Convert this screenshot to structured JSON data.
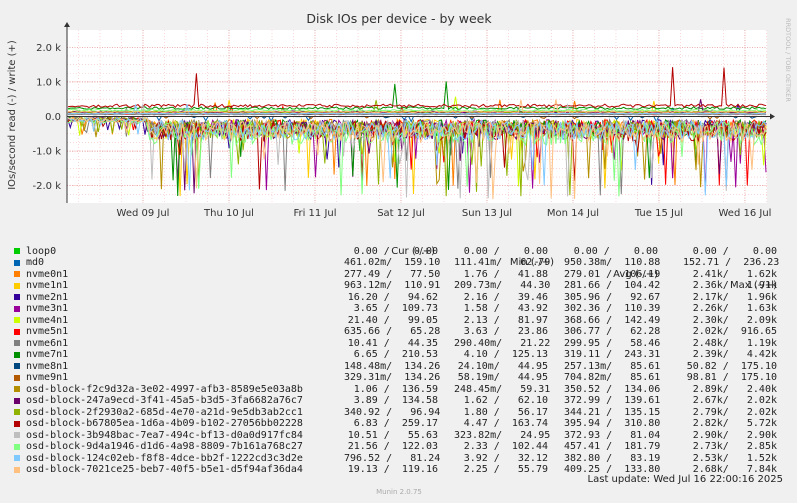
{
  "chart_data": {
    "type": "line",
    "title": "Disk IOs per device - by week",
    "ylabel": "IOs/second read (-) / write (+)",
    "ylim": [
      -2500,
      2500
    ],
    "y_ticks": [
      "2.0 k",
      "1.0 k",
      "0.0",
      "-1.0 k",
      "-2.0 k"
    ],
    "x_ticks": [
      "Wed 09 Jul",
      "Thu 10 Jul",
      "Fri 11 Jul",
      "Sat 12 Jul",
      "Sun 13 Jul",
      "Mon 14 Jul",
      "Tue 15 Jul",
      "Wed 16 Jul"
    ],
    "grid": true,
    "side_label": "RRDTOOL / TOBI OETIKER",
    "footer": "Munin 2.0.75",
    "last_update": "Last update: Wed Jul 16 22:00:16 2025",
    "legend_headers": {
      "cur": "Cur (-/+)",
      "min": "Min (-/+)",
      "avg": "Avg (-/+)",
      "max": "Max (-/+)"
    },
    "series": [
      {
        "name": "loop0",
        "color": "#00cc00",
        "cur": "0.00 /    0.00",
        "min": "0.00 /    0.00",
        "avg": "0.00 /    0.00",
        "max": "0.00 /    0.00"
      },
      {
        "name": "md0",
        "color": "#0066b3",
        "cur": "461.02m/  159.10",
        "min": "111.41m/   62.79",
        "avg": "950.38m/  110.88",
        "max": "152.71 /  236.23"
      },
      {
        "name": "nvme0n1",
        "color": "#ff8000",
        "cur": "277.49 /   77.50",
        "min": "1.76 /   41.88",
        "avg": "279.01 /  106.19",
        "max": "2.41k/   1.62k"
      },
      {
        "name": "nvme1n1",
        "color": "#ffcc00",
        "cur": "963.12m/  110.91",
        "min": "209.73m/   44.30",
        "avg": "281.66 /  104.42",
        "max": "2.36k/   1.91k"
      },
      {
        "name": "nvme2n1",
        "color": "#330099",
        "cur": "16.20 /   94.62",
        "min": "2.16 /   39.46",
        "avg": "305.96 /   92.67",
        "max": "2.17k/   1.96k"
      },
      {
        "name": "nvme3n1",
        "color": "#990099",
        "cur": "3.65 /  109.73",
        "min": "1.58 /   43.92",
        "avg": "302.36 /  110.39",
        "max": "2.26k/   1.63k"
      },
      {
        "name": "nvme4n1",
        "color": "#ccff00",
        "cur": "21.40 /   99.05",
        "min": "2.13 /   81.97",
        "avg": "368.66 /  142.49",
        "max": "2.30k/   2.09k"
      },
      {
        "name": "nvme5n1",
        "color": "#ff0000",
        "cur": "635.66 /   65.28",
        "min": "3.63 /   23.86",
        "avg": "306.77 /   62.28",
        "max": "2.02k/  916.65"
      },
      {
        "name": "nvme6n1",
        "color": "#808080",
        "cur": "10.41 /   44.35",
        "min": "290.40m/   21.22",
        "avg": "299.95 /   58.46",
        "max": "2.48k/   1.19k"
      },
      {
        "name": "nvme7n1",
        "color": "#008f00",
        "cur": "6.65 /  210.53",
        "min": "4.10 /  125.13",
        "avg": "319.11 /  243.31",
        "max": "2.39k/   4.42k"
      },
      {
        "name": "nvme8n1",
        "color": "#00487d",
        "cur": "148.48m/  134.26",
        "min": "24.10m/   44.95",
        "avg": "257.13m/   85.61",
        "max": "50.82 /  175.10"
      },
      {
        "name": "nvme9n1",
        "color": "#b35a00",
        "cur": "329.31m/  134.26",
        "min": "58.19m/   44.95",
        "avg": "704.82m/   85.61",
        "max": "98.81 /  175.10"
      },
      {
        "name": "osd-block-f2c9d32a-3e02-4997-afb3-8589e5e03a8b",
        "color": "#b38f00",
        "cur": "1.06 /  136.59",
        "min": "248.45m/   59.31",
        "avg": "350.52 /  134.06",
        "max": "2.89k/   2.40k"
      },
      {
        "name": "osd-block-247a9ecd-3f41-45a5-b3d5-3fa6682a76c7",
        "color": "#6b006b",
        "cur": "3.89 /  134.58",
        "min": "1.62 /   62.10",
        "avg": "372.99 /  139.61",
        "max": "2.67k/   2.02k"
      },
      {
        "name": "osd-block-2f2930a2-685d-4e70-a21d-9e5db3ab2cc1",
        "color": "#8fb300",
        "cur": "340.92 /   96.94",
        "min": "1.80 /   56.17",
        "avg": "344.21 /  135.15",
        "max": "2.79k/   2.02k"
      },
      {
        "name": "osd-block-b67805ea-1d6a-4b09-b102-27056bb02228",
        "color": "#b30000",
        "cur": "6.83 /  259.17",
        "min": "4.47 /  163.74",
        "avg": "395.94 /  310.80",
        "max": "2.82k/   5.72k"
      },
      {
        "name": "osd-block-3b948bac-7ea7-494c-bf13-d0a0d917fc84",
        "color": "#bebebe",
        "cur": "10.51 /   55.63",
        "min": "323.82m/   24.95",
        "avg": "372.93 /   81.04",
        "max": "2.90k/   2.90k"
      },
      {
        "name": "osd-block-9d4a1946-d1d6-4a98-8809-7b161a768c27",
        "color": "#80ff80",
        "cur": "21.56 /  122.03",
        "min": "2.33 /  102.44",
        "avg": "457.41 /  181.79",
        "max": "2.73k/   2.85k"
      },
      {
        "name": "osd-block-124c02eb-f8f8-4dce-bb2f-1222cd3c3d2e",
        "color": "#80c9ff",
        "cur": "796.52 /   81.24",
        "min": "3.92 /   32.12",
        "avg": "382.80 /   83.19",
        "max": "2.53k/   1.52k"
      },
      {
        "name": "osd-block-7021ce25-beb7-40f5-b5e1-d5f94af36da4",
        "color": "#ffc080",
        "cur": "19.13 /  119.16",
        "min": "2.25 /   55.79",
        "avg": "409.25 /  133.80",
        "max": "2.68k/   7.84k"
      }
    ]
  }
}
